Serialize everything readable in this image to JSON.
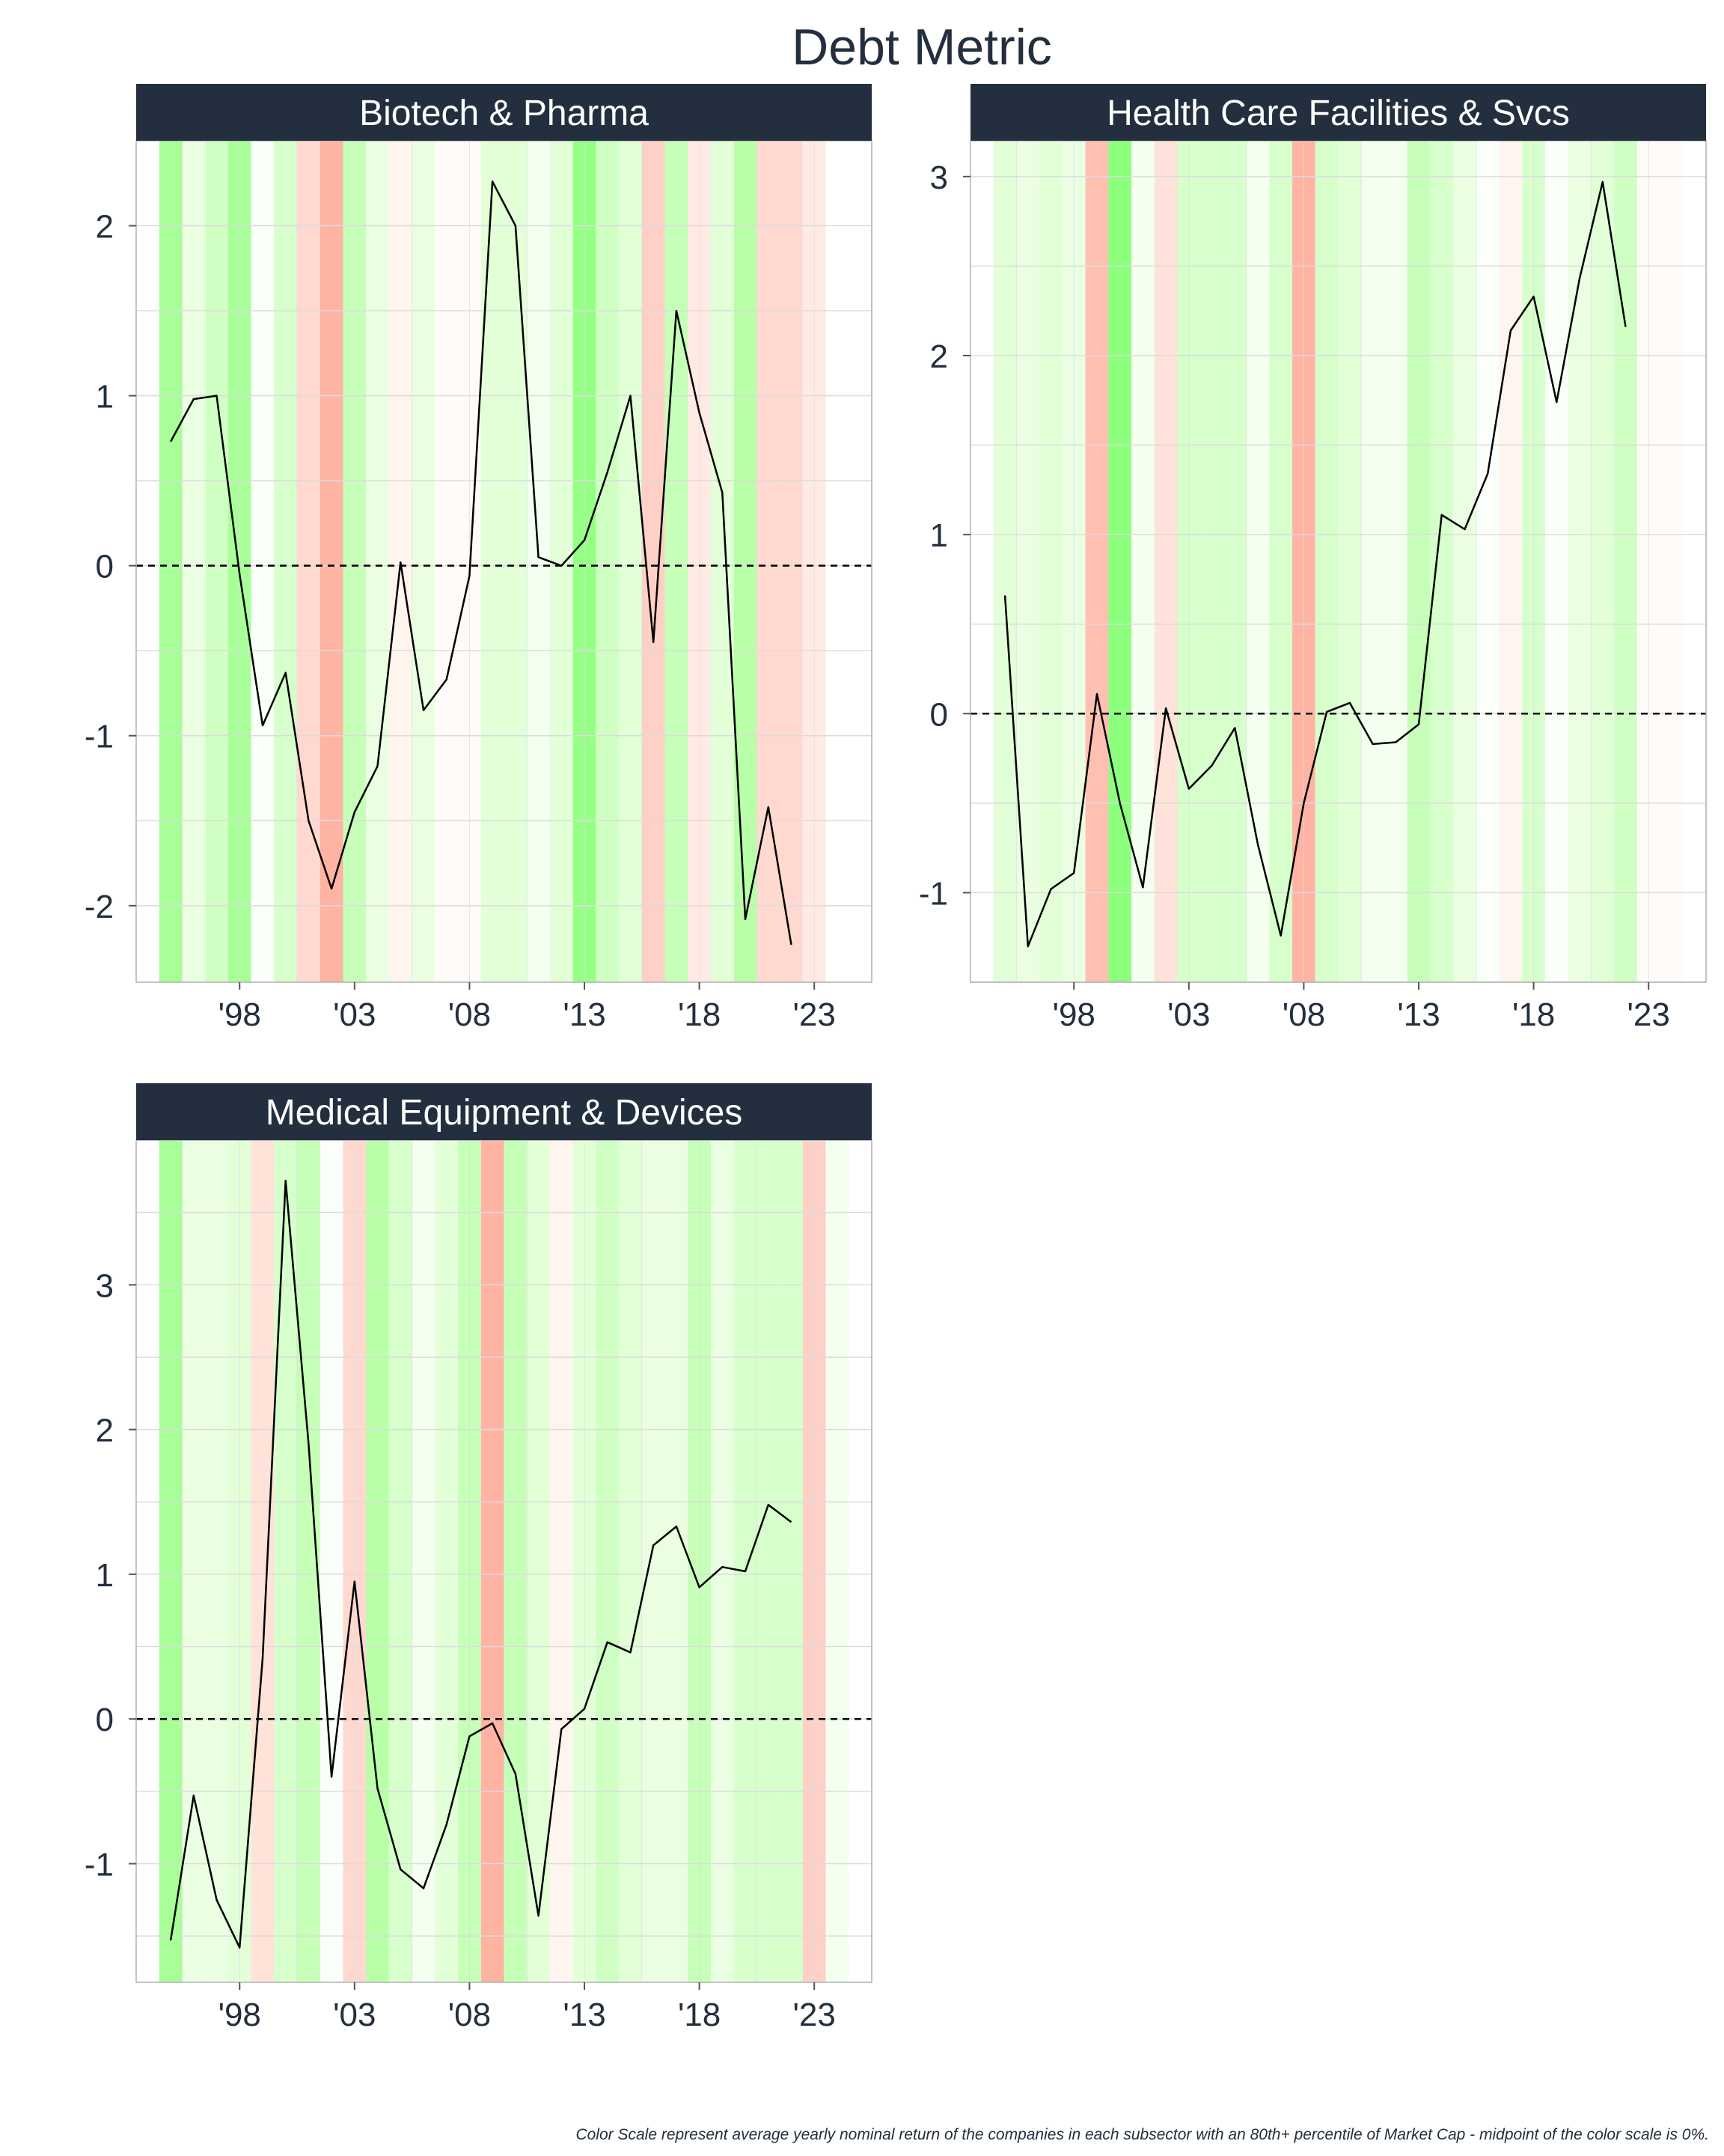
{
  "title": "Debt Metric",
  "caption": "Color Scale represent average yearly nominal return of the companies in each subsector with an 80th+ percentile of Market Cap - midpoint of the color scale is 0%.",
  "colors": {
    "strip_bg": "#232f3e",
    "strip_text": "#ffffff",
    "title_text": "#232f3e",
    "axis_text": "#232f3e",
    "grid": "#dcdcdc",
    "line": "#000000",
    "panel_border": "#b0b0b0"
  },
  "chart_data": [
    {
      "type": "line",
      "title": "Biotech & Pharma",
      "xlim": [
        1993.5,
        2025.5
      ],
      "ylim": [
        -2.45,
        2.5
      ],
      "x_ticks": [
        1998,
        2003,
        2008,
        2013,
        2018,
        2023
      ],
      "x_tick_labels": [
        "'98",
        "'03",
        "'08",
        "'13",
        "'18",
        "'23"
      ],
      "y_ticks": [
        -2,
        -1,
        0,
        1,
        2
      ],
      "y_tick_labels": [
        "-2",
        "-1",
        "0",
        "1",
        "2"
      ],
      "reference_line": 0,
      "x": [
        1995,
        1996,
        1997,
        1998,
        1999,
        2000,
        2001,
        2002,
        2003,
        2004,
        2005,
        2006,
        2007,
        2008,
        2009,
        2010,
        2011,
        2012,
        2013,
        2014,
        2015,
        2016,
        2017,
        2018,
        2019,
        2020,
        2021,
        2022
      ],
      "values": [
        0.73,
        0.98,
        1.0,
        -0.05,
        -0.94,
        -0.63,
        -1.5,
        -1.9,
        -1.45,
        -1.18,
        0.02,
        -0.85,
        -0.67,
        -0.06,
        2.26,
        2.0,
        0.05,
        0.0,
        0.15,
        0.55,
        1.0,
        -0.45,
        1.5,
        0.9,
        0.43,
        -2.08,
        -1.42,
        -2.23
      ],
      "band_years": [
        1995,
        1996,
        1997,
        1998,
        1999,
        2000,
        2001,
        2002,
        2003,
        2004,
        2005,
        2006,
        2007,
        2008,
        2009,
        2010,
        2011,
        2012,
        2013,
        2014,
        2015,
        2016,
        2017,
        2018,
        2019,
        2020,
        2021,
        2022,
        2023,
        2024
      ],
      "band_colors": [
        "#a8ff98",
        "#eaffe2",
        "#cfffc2",
        "#a8ff98",
        "#fbfffa",
        "#d6ffcc",
        "#ffd9d0",
        "#ffb3a3",
        "#c6ffb8",
        "#eaffe2",
        "#fff4ee",
        "#eaffe2",
        "#fffbf8",
        "#fffbf8",
        "#e2ffd8",
        "#e2ffd8",
        "#f4fff0",
        "#e2ffd8",
        "#96ff86",
        "#cfffc2",
        "#e2ffd8",
        "#ffd0c6",
        "#c6ffb8",
        "#ffeae4",
        "#e2ffd8",
        "#b8ffa8",
        "#ffd9d0",
        "#ffd9d0",
        "#ffeae4",
        "#ffffff"
      ]
    },
    {
      "type": "line",
      "title": "Health Care Facilities & Svcs",
      "xlim": [
        1993.5,
        2025.5
      ],
      "ylim": [
        -1.5,
        3.2
      ],
      "x_ticks": [
        1998,
        2003,
        2008,
        2013,
        2018,
        2023
      ],
      "x_tick_labels": [
        "'98",
        "'03",
        "'08",
        "'13",
        "'18",
        "'23"
      ],
      "y_ticks": [
        -1,
        0,
        1,
        2,
        3
      ],
      "y_tick_labels": [
        "-1",
        "0",
        "1",
        "2",
        "3"
      ],
      "reference_line": 0,
      "x": [
        1995,
        1996,
        1997,
        1998,
        1999,
        2000,
        2001,
        2002,
        2003,
        2004,
        2005,
        2006,
        2007,
        2008,
        2009,
        2010,
        2011,
        2012,
        2013,
        2014,
        2015,
        2016,
        2017,
        2018,
        2019,
        2020,
        2021,
        2022
      ],
      "values": [
        0.66,
        -1.3,
        -0.98,
        -0.89,
        0.11,
        -0.5,
        -0.97,
        0.03,
        -0.42,
        -0.29,
        -0.08,
        -0.73,
        -1.24,
        -0.5,
        0.01,
        0.06,
        -0.17,
        -0.16,
        -0.06,
        1.11,
        1.03,
        1.34,
        2.14,
        2.33,
        1.74,
        2.43,
        2.97,
        2.16
      ],
      "band_years": [
        1995,
        1996,
        1997,
        1998,
        1999,
        2000,
        2001,
        2002,
        2003,
        2004,
        2005,
        2006,
        2007,
        2008,
        2009,
        2010,
        2011,
        2012,
        2013,
        2014,
        2015,
        2016,
        2017,
        2018,
        2019,
        2020,
        2021,
        2022,
        2023,
        2024
      ],
      "band_colors": [
        "#e2ffd8",
        "#eaffe2",
        "#e2ffd8",
        "#eaffe2",
        "#ffc0b2",
        "#8cff7c",
        "#f4fff0",
        "#ffe2d8",
        "#d6ffcc",
        "#d6ffcc",
        "#d6ffcc",
        "#f4fff0",
        "#d6ffcc",
        "#ffb3a3",
        "#d6ffcc",
        "#e2ffd8",
        "#f4fff0",
        "#f4fff0",
        "#c6ffb8",
        "#d6ffcc",
        "#eaffe2",
        "#fbfffa",
        "#fff4ee",
        "#d6ffcc",
        "#fbfffa",
        "#eaffe2",
        "#e2ffd8",
        "#cfffc2",
        "#fffbf8",
        "#fffbf8"
      ]
    },
    {
      "type": "line",
      "title": "Medical Equipment & Devices",
      "xlim": [
        1993.5,
        2025.5
      ],
      "ylim": [
        -1.82,
        4.0
      ],
      "x_ticks": [
        1998,
        2003,
        2008,
        2013,
        2018,
        2023
      ],
      "x_tick_labels": [
        "'98",
        "'03",
        "'08",
        "'13",
        "'18",
        "'23"
      ],
      "y_ticks": [
        -1,
        0,
        1,
        2,
        3
      ],
      "y_tick_labels": [
        "-1",
        "0",
        "1",
        "2",
        "3"
      ],
      "reference_line": 0,
      "x": [
        1995,
        1996,
        1997,
        1998,
        1999,
        2000,
        2001,
        2002,
        2003,
        2004,
        2005,
        2006,
        2007,
        2008,
        2009,
        2010,
        2011,
        2012,
        2013,
        2014,
        2015,
        2016,
        2017,
        2018,
        2019,
        2020,
        2021,
        2022
      ],
      "values": [
        -1.53,
        -0.53,
        -1.25,
        -1.58,
        0.42,
        3.72,
        1.9,
        -0.4,
        0.95,
        -0.48,
        -1.04,
        -1.17,
        -0.73,
        -0.12,
        -0.03,
        -0.38,
        -1.36,
        -0.07,
        0.07,
        0.53,
        0.46,
        1.2,
        1.33,
        0.91,
        1.05,
        1.02,
        1.48,
        1.36
      ],
      "band_years": [
        1995,
        1996,
        1997,
        1998,
        1999,
        2000,
        2001,
        2002,
        2003,
        2004,
        2005,
        2006,
        2007,
        2008,
        2009,
        2010,
        2011,
        2012,
        2013,
        2014,
        2015,
        2016,
        2017,
        2018,
        2019,
        2020,
        2021,
        2022,
        2023,
        2024
      ],
      "band_colors": [
        "#a8ff98",
        "#eaffe2",
        "#eaffe2",
        "#e2ffd8",
        "#ffe2d8",
        "#d6ffcc",
        "#c6ffb8",
        "#fbfffa",
        "#ffd9d0",
        "#b8ffa8",
        "#d6ffcc",
        "#f4fff0",
        "#e2ffd8",
        "#c6ffb8",
        "#ffb3a3",
        "#c6ffb8",
        "#e2ffd8",
        "#fff4ee",
        "#e2ffd8",
        "#cfffc2",
        "#e2ffd8",
        "#eaffe2",
        "#eaffe2",
        "#c6ffb8",
        "#eaffe2",
        "#d6ffcc",
        "#d6ffcc",
        "#d6ffcc",
        "#ffd0c6",
        "#f4fff0"
      ]
    }
  ]
}
